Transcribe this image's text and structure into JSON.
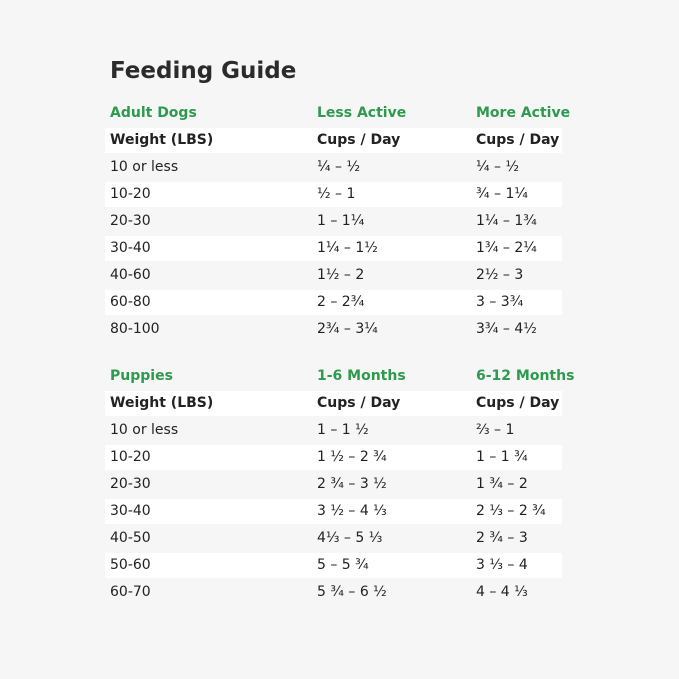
{
  "title": "Feeding Guide",
  "tables": [
    {
      "section_header": [
        "Adult Dogs",
        "Less Active",
        "More Active"
      ],
      "column_header": [
        "Weight (LBS)",
        "Cups / Day",
        "Cups / Day"
      ],
      "rows": [
        [
          "10 or less",
          "¼ – ½",
          "¼ – ½"
        ],
        [
          "10-20",
          "½ – 1",
          "¾ – 1¼"
        ],
        [
          "20-30",
          "1 – 1¼",
          "1¼ – 1¾"
        ],
        [
          "30-40",
          "1¼ – 1½",
          "1¾ – 2¼"
        ],
        [
          "40-60",
          "1½ – 2",
          "2½ – 3"
        ],
        [
          "60-80",
          "2 – 2¾",
          "3 – 3¾"
        ],
        [
          "80-100",
          "2¾ – 3¼",
          "3¾ – 4½"
        ]
      ]
    },
    {
      "section_header": [
        "Puppies",
        "1-6 Months",
        "6-12 Months"
      ],
      "column_header": [
        "Weight (LBS)",
        "Cups / Day",
        "Cups / Day"
      ],
      "rows": [
        [
          "10 or less",
          "1 – 1 ½",
          "⅔ – 1"
        ],
        [
          "10-20",
          "1 ½ – 2 ¾",
          "1 – 1 ¾"
        ],
        [
          "20-30",
          "2 ¾ – 3 ½",
          "1 ¾ – 2"
        ],
        [
          "30-40",
          "3 ½ – 4 ⅓",
          "2 ⅓ – 2 ¾"
        ],
        [
          "40-50",
          "4⅓ – 5 ⅓",
          "2 ¾ – 3"
        ],
        [
          "50-60",
          "5 – 5 ¾",
          "3 ⅓ – 4"
        ],
        [
          "60-70",
          "5 ¾ – 6 ½",
          "4 – 4 ⅓"
        ]
      ]
    }
  ]
}
